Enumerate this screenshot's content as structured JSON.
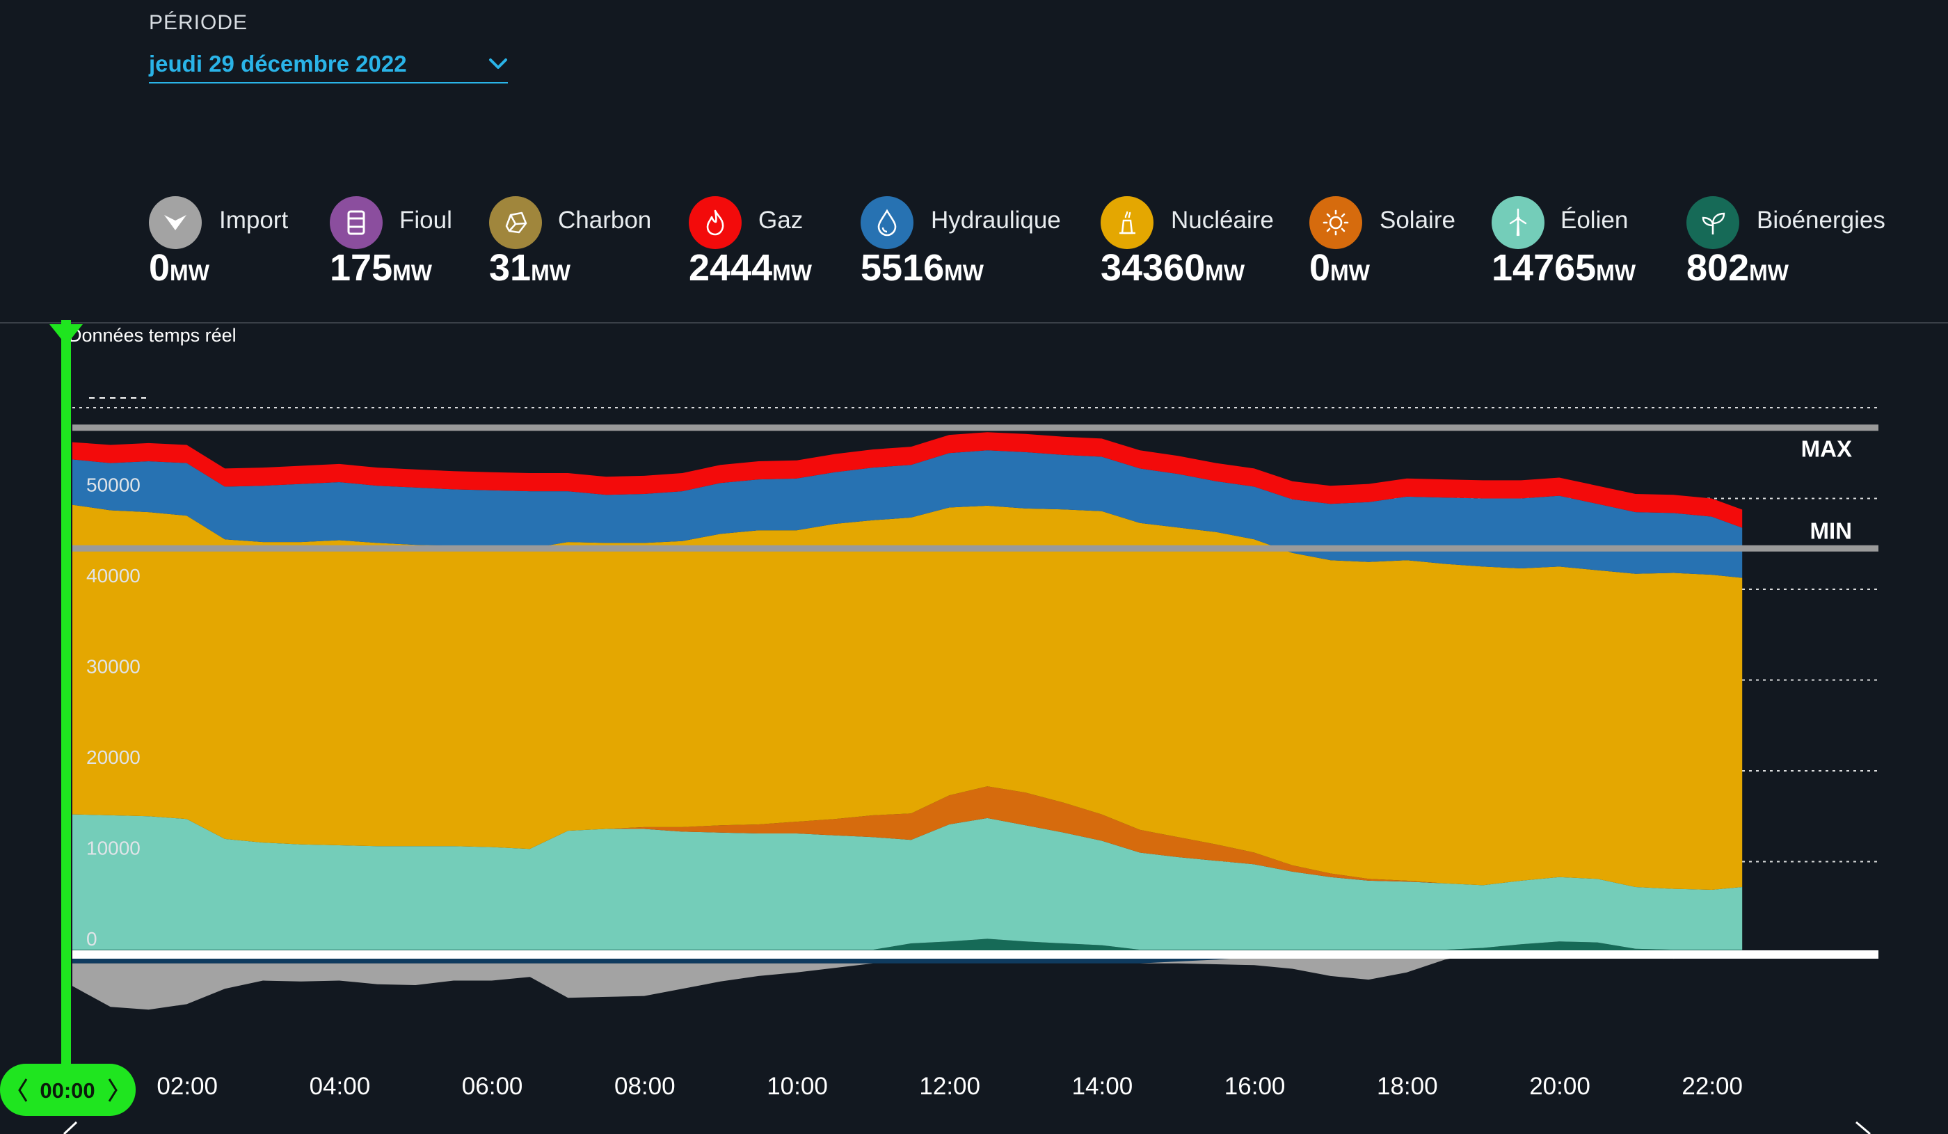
{
  "periode": {
    "label": "PÉRIODE",
    "value": "jeudi 29 décembre 2022"
  },
  "colors": {
    "import": "#a3a3a3",
    "fioul": "#8b4e9e",
    "charbon": "#a0863c",
    "gaz": "#f30b0b",
    "hydraulique": "#2772b2",
    "nucleaire": "#e4a701",
    "solaire": "#d66b0d",
    "eolien": "#74cdb9",
    "bioenergies": "#166a57",
    "export": "#0f3b5f",
    "cursor": "#1fe51f"
  },
  "legend": [
    {
      "key": "import",
      "name": "Import",
      "value": "0",
      "unit": "MW",
      "icon": "import-icon"
    },
    {
      "key": "fioul",
      "name": "Fioul",
      "value": "175",
      "unit": "MW",
      "icon": "oil-barrel-icon"
    },
    {
      "key": "charbon",
      "name": "Charbon",
      "value": "31",
      "unit": "MW",
      "icon": "coal-icon"
    },
    {
      "key": "gaz",
      "name": "Gaz",
      "value": "2444",
      "unit": "MW",
      "icon": "flame-icon"
    },
    {
      "key": "hydraulique",
      "name": "Hydraulique",
      "value": "5516",
      "unit": "MW",
      "icon": "water-drop-icon"
    },
    {
      "key": "nucleaire",
      "name": "Nucléaire",
      "value": "34360",
      "unit": "MW",
      "icon": "nuclear-plant-icon"
    },
    {
      "key": "solaire",
      "name": "Solaire",
      "value": "0",
      "unit": "MW",
      "icon": "sun-icon"
    },
    {
      "key": "eolien",
      "name": "Éolien",
      "value": "14765",
      "unit": "MW",
      "icon": "wind-turbine-icon"
    },
    {
      "key": "bioenergies",
      "name": "Bioénergies",
      "value": "802",
      "unit": "MW",
      "icon": "leaf-sprout-icon"
    }
  ],
  "realtime_label": "Données temps réel",
  "cursor_time": "00:00",
  "ref_lines": {
    "max_label": "MAX",
    "min_label": "MIN",
    "max_value": 57800,
    "min_value": 44500
  },
  "chart_data": {
    "type": "area",
    "stacked": true,
    "x_unit": "hours",
    "x_range": [
      0,
      23.5
    ],
    "ylim": [
      -9500,
      60000
    ],
    "y_ticks": [
      0,
      10000,
      20000,
      30000,
      40000,
      50000
    ],
    "x_ticks": [
      "02:00",
      "04:00",
      "06:00",
      "08:00",
      "10:00",
      "12:00",
      "14:00",
      "16:00",
      "18:00",
      "20:00",
      "22:00"
    ],
    "x": [
      0,
      0.5,
      1,
      1.5,
      2,
      2.5,
      3,
      3.5,
      4,
      4.5,
      5,
      5.5,
      6,
      6.5,
      7,
      7.5,
      8,
      8.5,
      9,
      9.5,
      10,
      10.5,
      11,
      11.5,
      12,
      12.5,
      13,
      13.5,
      14,
      14.5,
      15,
      15.5,
      16,
      16.5,
      17,
      17.5,
      18,
      18.5,
      19,
      19.5,
      20,
      20.5,
      21,
      21.5,
      21.9
    ],
    "series": [
      {
        "key": "bioenergies",
        "name": "Bioénergies",
        "values": [
          300,
          300,
          300,
          300,
          300,
          300,
          300,
          300,
          300,
          300,
          300,
          300,
          300,
          300,
          300,
          300,
          300,
          300,
          300,
          300,
          300,
          300,
          1000,
          1200,
          1500,
          1200,
          1000,
          800,
          300,
          300,
          300,
          300,
          300,
          300,
          300,
          300,
          300,
          500,
          900,
          1200,
          1100,
          400,
          300,
          300,
          300
        ]
      },
      {
        "key": "eolien",
        "name": "Éolien",
        "values": [
          14900,
          14800,
          14700,
          14400,
          12200,
          11800,
          11600,
          11500,
          11400,
          11400,
          11400,
          11300,
          11100,
          13100,
          13300,
          13300,
          13000,
          12900,
          12800,
          12800,
          12600,
          12400,
          11400,
          12900,
          13300,
          12800,
          12200,
          11500,
          10700,
          10200,
          9800,
          9400,
          8600,
          8000,
          7600,
          7500,
          7300,
          6900,
          7000,
          7100,
          7000,
          6800,
          6700,
          6600,
          6900
        ]
      },
      {
        "key": "solaire",
        "name": "Solaire",
        "values": [
          0,
          0,
          0,
          0,
          0,
          0,
          0,
          0,
          0,
          0,
          0,
          0,
          0,
          0,
          0,
          200,
          500,
          800,
          1000,
          1300,
          1800,
          2400,
          2900,
          3200,
          3500,
          3600,
          3300,
          2900,
          2500,
          2200,
          1800,
          1300,
          700,
          400,
          200,
          100,
          0,
          0,
          0,
          0,
          0,
          0,
          0,
          0,
          0
        ]
      },
      {
        "key": "nucleaire",
        "name": "Nucléaire",
        "values": [
          34100,
          33600,
          33500,
          33400,
          33000,
          33100,
          33300,
          33600,
          33400,
          33200,
          33100,
          33100,
          33100,
          31800,
          31500,
          31300,
          31500,
          32100,
          32400,
          32100,
          32500,
          32500,
          32600,
          31700,
          30900,
          31300,
          32300,
          33400,
          33800,
          34100,
          34400,
          34500,
          34400,
          34500,
          34900,
          35300,
          35200,
          35100,
          34400,
          34200,
          34000,
          34500,
          34800,
          34700,
          34060
        ]
      },
      {
        "key": "hydraulique",
        "name": "Hydraulique",
        "values": [
          5000,
          5200,
          5600,
          5800,
          5800,
          6200,
          6400,
          6400,
          6300,
          6300,
          6200,
          6200,
          6300,
          5600,
          5300,
          5400,
          5500,
          5600,
          5600,
          5700,
          5700,
          5800,
          5800,
          6000,
          6100,
          6200,
          6000,
          6000,
          6000,
          5900,
          5600,
          5800,
          5900,
          6200,
          6600,
          7000,
          7300,
          7500,
          7700,
          7800,
          7300,
          6800,
          6600,
          6400,
          5516
        ]
      },
      {
        "key": "gaz",
        "name": "Gaz",
        "values": [
          1900,
          2000,
          2000,
          2000,
          2000,
          2000,
          2000,
          2000,
          2000,
          2000,
          2000,
          2000,
          2000,
          2000,
          2000,
          2000,
          2000,
          2000,
          2000,
          2000,
          2000,
          2000,
          2000,
          2000,
          2000,
          2000,
          2000,
          2000,
          2000,
          2000,
          2000,
          2000,
          2000,
          2000,
          2000,
          2000,
          2000,
          2000,
          2000,
          2000,
          2000,
          2000,
          2000,
          2000,
          2000
        ]
      },
      {
        "key": "export",
        "name": "",
        "values": [
          -1200,
          -1200,
          -1200,
          -1200,
          -1200,
          -1200,
          -1200,
          -1200,
          -1200,
          -1200,
          -1200,
          -1200,
          -1200,
          -1200,
          -1200,
          -1200,
          -1200,
          -1200,
          -1200,
          -1200,
          -1200,
          -1200,
          -1200,
          -1200,
          -1200,
          -1200,
          -1200,
          -1200,
          -1200,
          -1000,
          -800,
          -500,
          -200,
          0,
          0,
          0,
          0,
          0,
          0,
          0,
          0,
          0,
          0,
          0,
          0
        ]
      },
      {
        "key": "import",
        "name": "Import",
        "values": [
          -2500,
          -4800,
          -5100,
          -4500,
          -2800,
          -1900,
          -2000,
          -1900,
          -2300,
          -2400,
          -1900,
          -1900,
          -1500,
          -3800,
          -3700,
          -3600,
          -2800,
          -2000,
          -1400,
          -1000,
          -500,
          0,
          0,
          0,
          0,
          0,
          0,
          0,
          0,
          -200,
          -500,
          -900,
          -1600,
          -2600,
          -3000,
          -2200,
          -800,
          0,
          0,
          0,
          0,
          0,
          -700,
          -300,
          0
        ]
      }
    ]
  }
}
